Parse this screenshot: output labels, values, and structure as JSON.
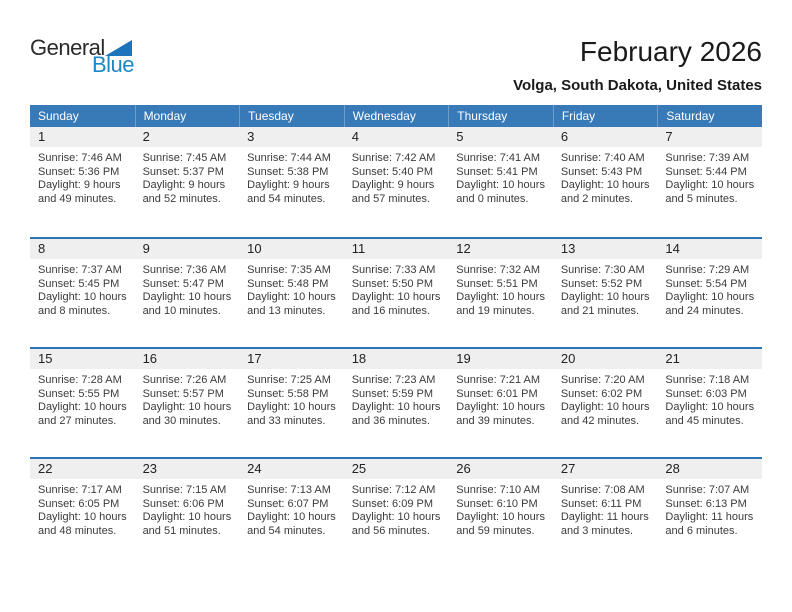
{
  "logo": {
    "word_top": "General",
    "word_bottom": "Blue"
  },
  "header": {
    "title": "February 2026",
    "subtitle": "Volga, South Dakota, United States"
  },
  "colors": {
    "header_bar": "#3879b8",
    "row_line": "#2e74b5",
    "band_bg": "#efefef",
    "logo_blue": "#1b87c5",
    "logo_triangle": "#1c75bc",
    "text_dark": "#3b3b3b"
  },
  "calendar": {
    "day_headers": [
      "Sunday",
      "Monday",
      "Tuesday",
      "Wednesday",
      "Thursday",
      "Friday",
      "Saturday"
    ],
    "weeks": [
      {
        "days": [
          {
            "date": "1",
            "sunrise": "Sunrise: 7:46 AM",
            "sunset": "Sunset: 5:36 PM",
            "daylight1": "Daylight: 9 hours",
            "daylight2": "and 49 minutes."
          },
          {
            "date": "2",
            "sunrise": "Sunrise: 7:45 AM",
            "sunset": "Sunset: 5:37 PM",
            "daylight1": "Daylight: 9 hours",
            "daylight2": "and 52 minutes."
          },
          {
            "date": "3",
            "sunrise": "Sunrise: 7:44 AM",
            "sunset": "Sunset: 5:38 PM",
            "daylight1": "Daylight: 9 hours",
            "daylight2": "and 54 minutes."
          },
          {
            "date": "4",
            "sunrise": "Sunrise: 7:42 AM",
            "sunset": "Sunset: 5:40 PM",
            "daylight1": "Daylight: 9 hours",
            "daylight2": "and 57 minutes."
          },
          {
            "date": "5",
            "sunrise": "Sunrise: 7:41 AM",
            "sunset": "Sunset: 5:41 PM",
            "daylight1": "Daylight: 10 hours",
            "daylight2": "and 0 minutes."
          },
          {
            "date": "6",
            "sunrise": "Sunrise: 7:40 AM",
            "sunset": "Sunset: 5:43 PM",
            "daylight1": "Daylight: 10 hours",
            "daylight2": "and 2 minutes."
          },
          {
            "date": "7",
            "sunrise": "Sunrise: 7:39 AM",
            "sunset": "Sunset: 5:44 PM",
            "daylight1": "Daylight: 10 hours",
            "daylight2": "and 5 minutes."
          }
        ]
      },
      {
        "days": [
          {
            "date": "8",
            "sunrise": "Sunrise: 7:37 AM",
            "sunset": "Sunset: 5:45 PM",
            "daylight1": "Daylight: 10 hours",
            "daylight2": "and 8 minutes."
          },
          {
            "date": "9",
            "sunrise": "Sunrise: 7:36 AM",
            "sunset": "Sunset: 5:47 PM",
            "daylight1": "Daylight: 10 hours",
            "daylight2": "and 10 minutes."
          },
          {
            "date": "10",
            "sunrise": "Sunrise: 7:35 AM",
            "sunset": "Sunset: 5:48 PM",
            "daylight1": "Daylight: 10 hours",
            "daylight2": "and 13 minutes."
          },
          {
            "date": "11",
            "sunrise": "Sunrise: 7:33 AM",
            "sunset": "Sunset: 5:50 PM",
            "daylight1": "Daylight: 10 hours",
            "daylight2": "and 16 minutes."
          },
          {
            "date": "12",
            "sunrise": "Sunrise: 7:32 AM",
            "sunset": "Sunset: 5:51 PM",
            "daylight1": "Daylight: 10 hours",
            "daylight2": "and 19 minutes."
          },
          {
            "date": "13",
            "sunrise": "Sunrise: 7:30 AM",
            "sunset": "Sunset: 5:52 PM",
            "daylight1": "Daylight: 10 hours",
            "daylight2": "and 21 minutes."
          },
          {
            "date": "14",
            "sunrise": "Sunrise: 7:29 AM",
            "sunset": "Sunset: 5:54 PM",
            "daylight1": "Daylight: 10 hours",
            "daylight2": "and 24 minutes."
          }
        ]
      },
      {
        "days": [
          {
            "date": "15",
            "sunrise": "Sunrise: 7:28 AM",
            "sunset": "Sunset: 5:55 PM",
            "daylight1": "Daylight: 10 hours",
            "daylight2": "and 27 minutes."
          },
          {
            "date": "16",
            "sunrise": "Sunrise: 7:26 AM",
            "sunset": "Sunset: 5:57 PM",
            "daylight1": "Daylight: 10 hours",
            "daylight2": "and 30 minutes."
          },
          {
            "date": "17",
            "sunrise": "Sunrise: 7:25 AM",
            "sunset": "Sunset: 5:58 PM",
            "daylight1": "Daylight: 10 hours",
            "daylight2": "and 33 minutes."
          },
          {
            "date": "18",
            "sunrise": "Sunrise: 7:23 AM",
            "sunset": "Sunset: 5:59 PM",
            "daylight1": "Daylight: 10 hours",
            "daylight2": "and 36 minutes."
          },
          {
            "date": "19",
            "sunrise": "Sunrise: 7:21 AM",
            "sunset": "Sunset: 6:01 PM",
            "daylight1": "Daylight: 10 hours",
            "daylight2": "and 39 minutes."
          },
          {
            "date": "20",
            "sunrise": "Sunrise: 7:20 AM",
            "sunset": "Sunset: 6:02 PM",
            "daylight1": "Daylight: 10 hours",
            "daylight2": "and 42 minutes."
          },
          {
            "date": "21",
            "sunrise": "Sunrise: 7:18 AM",
            "sunset": "Sunset: 6:03 PM",
            "daylight1": "Daylight: 10 hours",
            "daylight2": "and 45 minutes."
          }
        ]
      },
      {
        "days": [
          {
            "date": "22",
            "sunrise": "Sunrise: 7:17 AM",
            "sunset": "Sunset: 6:05 PM",
            "daylight1": "Daylight: 10 hours",
            "daylight2": "and 48 minutes."
          },
          {
            "date": "23",
            "sunrise": "Sunrise: 7:15 AM",
            "sunset": "Sunset: 6:06 PM",
            "daylight1": "Daylight: 10 hours",
            "daylight2": "and 51 minutes."
          },
          {
            "date": "24",
            "sunrise": "Sunrise: 7:13 AM",
            "sunset": "Sunset: 6:07 PM",
            "daylight1": "Daylight: 10 hours",
            "daylight2": "and 54 minutes."
          },
          {
            "date": "25",
            "sunrise": "Sunrise: 7:12 AM",
            "sunset": "Sunset: 6:09 PM",
            "daylight1": "Daylight: 10 hours",
            "daylight2": "and 56 minutes."
          },
          {
            "date": "26",
            "sunrise": "Sunrise: 7:10 AM",
            "sunset": "Sunset: 6:10 PM",
            "daylight1": "Daylight: 10 hours",
            "daylight2": "and 59 minutes."
          },
          {
            "date": "27",
            "sunrise": "Sunrise: 7:08 AM",
            "sunset": "Sunset: 6:11 PM",
            "daylight1": "Daylight: 11 hours",
            "daylight2": "and 3 minutes."
          },
          {
            "date": "28",
            "sunrise": "Sunrise: 7:07 AM",
            "sunset": "Sunset: 6:13 PM",
            "daylight1": "Daylight: 11 hours",
            "daylight2": "and 6 minutes."
          }
        ]
      }
    ]
  }
}
